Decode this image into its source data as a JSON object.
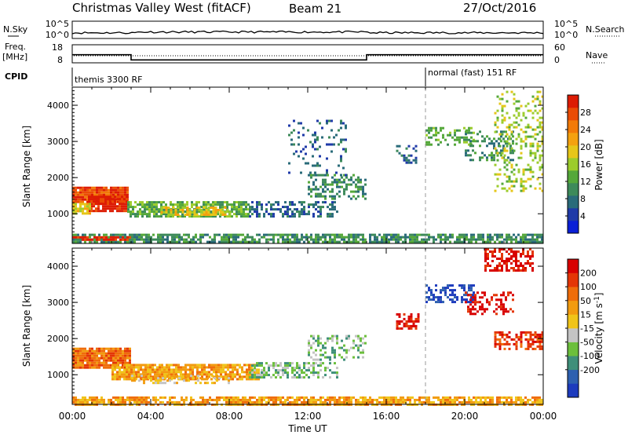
{
  "header": {
    "title": "Christmas Valley West (fitACF)",
    "beam": "Beam 21",
    "date": "27/Oct/2016"
  },
  "strip_labels": {
    "nsky": "N.Sky",
    "nsearch": "N.Search",
    "freq_line1": "Freq.",
    "freq_line2": "[MHz]",
    "nave": "Nave",
    "cpid": "CPID"
  },
  "noise_panel": {
    "left_ticks": [
      "10^5",
      "10^0"
    ],
    "right_ticks": [
      "10^5",
      "10^0"
    ]
  },
  "freq_panel": {
    "left_ticks": [
      "18",
      "8"
    ],
    "right_ticks": [
      "60",
      "0"
    ],
    "freq_levels_mhz": [
      {
        "t0": 0,
        "t1": 3,
        "f": 12.5
      },
      {
        "t0": 3,
        "t1": 15,
        "f": 9.6
      },
      {
        "t0": 15,
        "t1": 24,
        "f": 12.5
      }
    ]
  },
  "cpid_panel": {
    "modes": [
      {
        "label": "themis 3300 RF",
        "start_hour": 0,
        "end_hour": 18
      },
      {
        "label": "normal (fast) 151 RF",
        "start_hour": 18,
        "end_hour": 24
      }
    ]
  },
  "axes": {
    "ylabel": "Slant Range [km]",
    "xlabel": "Time UT",
    "yticks": [
      "1000",
      "2000",
      "3000",
      "4000"
    ],
    "xticks": [
      "00:00",
      "04:00",
      "08:00",
      "12:00",
      "16:00",
      "20:00",
      "00:00"
    ]
  },
  "colorbars": {
    "power": {
      "label": "Power [dB]",
      "ticks": [
        "4",
        "8",
        "12",
        "16",
        "20",
        "24",
        "28"
      ],
      "colors": [
        "#0a1fd6",
        "#1f3aa8",
        "#2a6b7a",
        "#3d8a5a",
        "#55a83a",
        "#9ccc2c",
        "#e6c619",
        "#f4a10f",
        "#f27a08",
        "#ea4c05",
        "#dd1c04"
      ]
    },
    "velocity": {
      "label_main": "Velocity [m s",
      "label_exp": "-1",
      "label_end": "]",
      "ticks": [
        "200",
        "100",
        "50",
        "15",
        "-15",
        "-50",
        "-100",
        "-200"
      ],
      "colors": [
        "#1d3bbd",
        "#2e60b0",
        "#3f8f7a",
        "#6cbf3c",
        "#c4c4c4",
        "#f0c419",
        "#f29b0f",
        "#ef6d0a",
        "#e43606",
        "#d80000"
      ]
    }
  },
  "chart_data": {
    "type": "heatmap",
    "title": "Christmas Valley West (fitACF)",
    "xlabel": "Time UT",
    "ylabel": "Slant Range [km]",
    "xlim_hours": [
      0,
      24
    ],
    "ylim_km": [
      180,
      4500
    ],
    "power_regions": [
      {
        "t0": 0.0,
        "t1": 2.8,
        "r0": 1300,
        "r1": 1750,
        "c": 9,
        "d": 0.95
      },
      {
        "t0": 0.8,
        "t1": 2.8,
        "r0": 1050,
        "r1": 1500,
        "c": 10,
        "d": 0.9
      },
      {
        "t0": 0.0,
        "t1": 0.9,
        "r0": 1000,
        "r1": 1300,
        "c": 6,
        "d": 0.8
      },
      {
        "t0": 2.8,
        "t1": 9.0,
        "r0": 950,
        "r1": 1350,
        "c": 4,
        "d": 0.75
      },
      {
        "t0": 4.5,
        "t1": 8.0,
        "r0": 1000,
        "r1": 1200,
        "c": 6,
        "d": 0.6
      },
      {
        "t0": 9.0,
        "t1": 13.5,
        "r0": 950,
        "r1": 1350,
        "c": 2,
        "d": 0.5
      },
      {
        "t0": 12.0,
        "t1": 15.0,
        "r0": 1400,
        "r1": 2100,
        "c": 3,
        "d": 0.45
      },
      {
        "t0": 11.0,
        "t1": 14.0,
        "r0": 2100,
        "r1": 3600,
        "c": 2,
        "d": 0.15
      },
      {
        "t0": 0.0,
        "t1": 24.0,
        "r0": 200,
        "r1": 450,
        "c": 3,
        "d": 0.75
      },
      {
        "t0": 0.0,
        "t1": 3.0,
        "r0": 250,
        "r1": 380,
        "c": 10,
        "d": 0.8
      },
      {
        "t0": 18.0,
        "t1": 20.5,
        "r0": 2900,
        "r1": 3400,
        "c": 4,
        "d": 0.4
      },
      {
        "t0": 20.0,
        "t1": 22.5,
        "r0": 2500,
        "r1": 3300,
        "c": 3,
        "d": 0.35
      },
      {
        "t0": 21.5,
        "t1": 24.0,
        "r0": 1600,
        "r1": 4400,
        "c": 5,
        "d": 0.3
      },
      {
        "t0": 16.5,
        "t1": 17.5,
        "r0": 2400,
        "r1": 2900,
        "c": 2,
        "d": 0.3
      }
    ],
    "velocity_regions": [
      {
        "t0": 0.0,
        "t1": 3.0,
        "r0": 1200,
        "r1": 1750,
        "c": 7,
        "d": 0.95
      },
      {
        "t0": 2.0,
        "t1": 9.5,
        "r0": 900,
        "r1": 1300,
        "c": 6,
        "d": 0.85
      },
      {
        "t0": 3.0,
        "t1": 8.0,
        "r0": 800,
        "r1": 1000,
        "c": 5,
        "d": 0.4
      },
      {
        "t0": 9.0,
        "t1": 13.5,
        "r0": 950,
        "r1": 1350,
        "c": 3,
        "d": 0.55
      },
      {
        "t0": 12.0,
        "t1": 15.0,
        "r0": 1400,
        "r1": 2100,
        "c": 3,
        "d": 0.4
      },
      {
        "t0": 0.0,
        "t1": 24.0,
        "r0": 200,
        "r1": 400,
        "c": 6,
        "d": 0.8
      },
      {
        "t0": 18.0,
        "t1": 20.5,
        "r0": 3000,
        "r1": 3500,
        "c": 0,
        "d": 0.5
      },
      {
        "t0": 20.0,
        "t1": 22.5,
        "r0": 2700,
        "r1": 3300,
        "c": 9,
        "d": 0.4
      },
      {
        "t0": 21.5,
        "t1": 24.0,
        "r0": 1700,
        "r1": 2200,
        "c": 8,
        "d": 0.6
      },
      {
        "t0": 21.0,
        "t1": 23.5,
        "r0": 3900,
        "r1": 4500,
        "c": 9,
        "d": 0.5
      },
      {
        "t0": 16.5,
        "t1": 17.6,
        "r0": 2300,
        "r1": 2700,
        "c": 9,
        "d": 0.5
      }
    ]
  }
}
